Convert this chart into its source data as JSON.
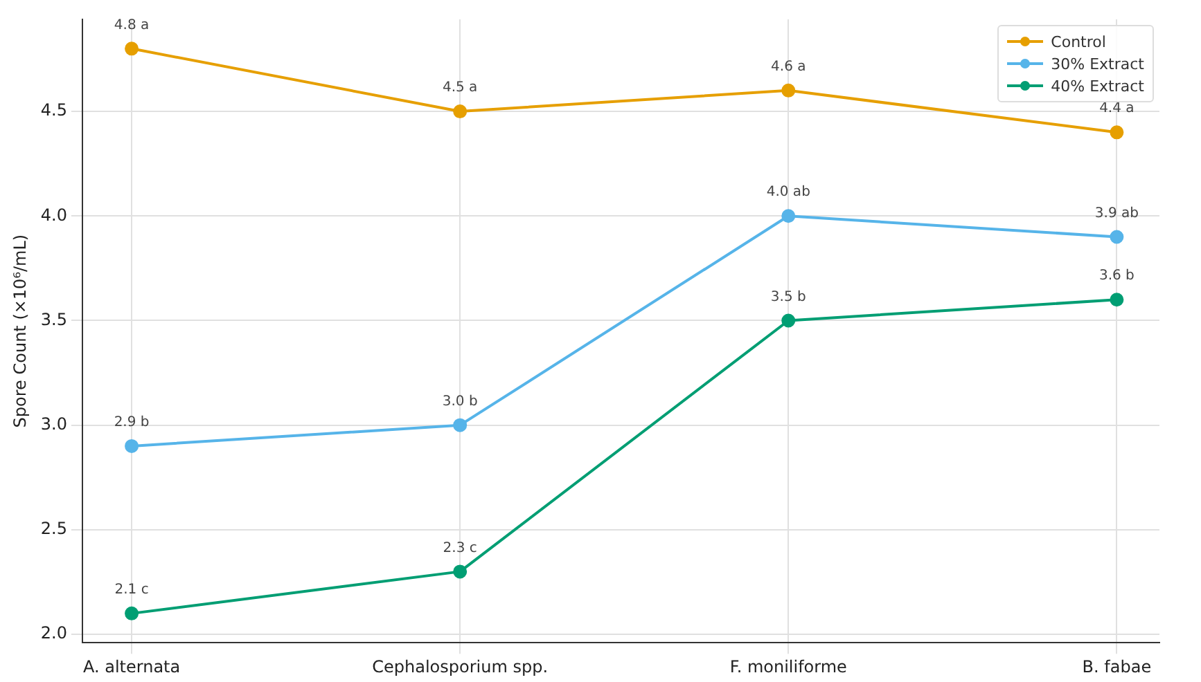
{
  "chart_data": {
    "type": "line",
    "ylabel": "Spore Count (×10⁶/mL)",
    "categories": [
      "A. alternata",
      "Cephalosporium spp.",
      "F. moniliforme",
      "B. fabae"
    ],
    "series": [
      {
        "name": "Control",
        "color": "#e69f00",
        "values": [
          4.8,
          4.5,
          4.6,
          4.4
        ],
        "value_labels": [
          "4.8 a",
          "4.5 a",
          "4.6 a",
          "4.4 a"
        ]
      },
      {
        "name": "30% Extract",
        "color": "#56b4e9",
        "values": [
          2.9,
          3.0,
          4.0,
          3.9
        ],
        "value_labels": [
          "2.9 b",
          "3.0 b",
          "4.0 ab",
          "3.9 ab"
        ]
      },
      {
        "name": "40% Extract",
        "color": "#009e73",
        "values": [
          2.1,
          2.3,
          3.5,
          3.6
        ],
        "value_labels": [
          "2.1 c",
          "2.3 c",
          "3.5 b",
          "3.6 b"
        ]
      }
    ],
    "ylim": [
      1.96,
      4.94
    ],
    "yticks": [
      {
        "value": 2,
        "label": "2.0"
      },
      2.5,
      {
        "value": 3,
        "label": "3.0"
      },
      3.5,
      {
        "value": 4,
        "label": "4.0"
      },
      4.5
    ],
    "grid": true,
    "legend": "top right",
    "marker": "circle",
    "line_style": "solid"
  }
}
